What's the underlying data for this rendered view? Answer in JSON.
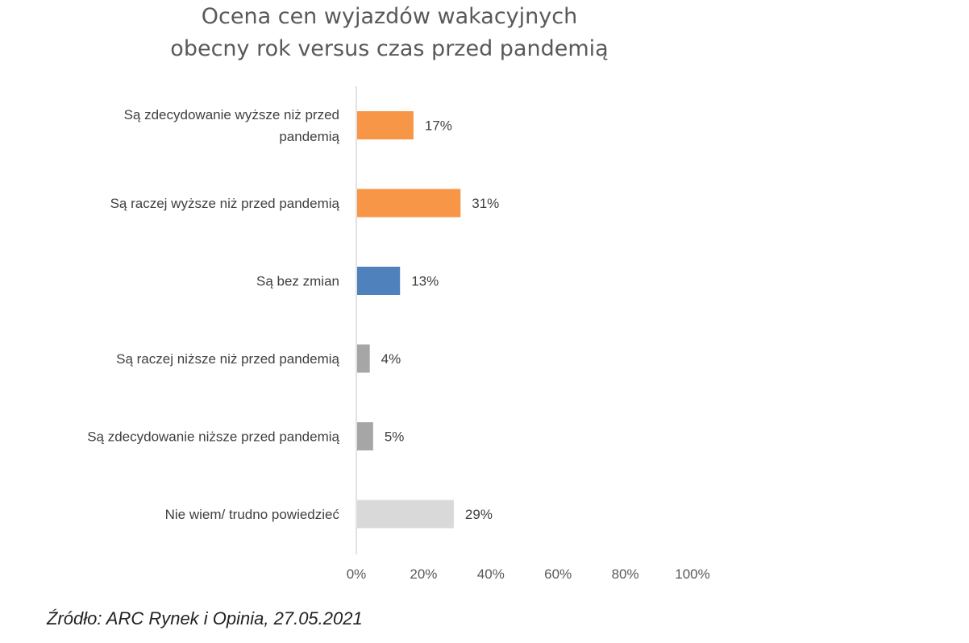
{
  "title_line1": "Ocena cen wyjazdów wakacyjnych",
  "title_line2": "obecny rok versus czas przed pandemią",
  "source": "Źródło: ARC Rynek i Opinia, 27.05.2021",
  "chart_data": {
    "type": "bar",
    "orientation": "horizontal",
    "categories": [
      [
        "Są zdecydowanie wyższe niż przed",
        "pandemią"
      ],
      [
        "Są raczej wyższe niż przed pandemią"
      ],
      [
        "Są bez zmian"
      ],
      [
        "Są raczej niższe niż przed pandemią"
      ],
      [
        "Są zdecydowanie niższe przed pandemią"
      ],
      [
        "Nie wiem/ trudno powiedzieć"
      ]
    ],
    "values": [
      17,
      31,
      13,
      4,
      5,
      29
    ],
    "value_labels": [
      "17%",
      "31%",
      "13%",
      "4%",
      "5%",
      "29%"
    ],
    "bar_colors": [
      "#F79646",
      "#F79646",
      "#4F81BD",
      "#A6A6A6",
      "#A6A6A6",
      "#D9D9D9"
    ],
    "xlim": [
      0,
      100
    ],
    "xticks": [
      0,
      20,
      40,
      60,
      80,
      100
    ],
    "xtick_labels": [
      "0%",
      "20%",
      "40%",
      "60%",
      "80%",
      "100%"
    ],
    "grid": false,
    "legend": "none"
  }
}
